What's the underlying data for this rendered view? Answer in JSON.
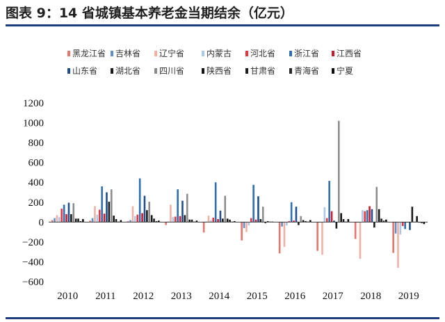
{
  "figure_title": "图表 9：14 省城镇基本养老金当期结余（亿元）",
  "chart_data": {
    "type": "bar",
    "title": "",
    "xlabel": "",
    "ylabel": "",
    "ylim": [
      -600,
      1200
    ],
    "yticks": [
      -600,
      -400,
      -200,
      0,
      200,
      400,
      600,
      800,
      1000,
      1200
    ],
    "grid": false,
    "legend_position": "top",
    "categories": [
      "2010",
      "2011",
      "2012",
      "2013",
      "2014",
      "2015",
      "2016",
      "2017",
      "2018",
      "2019"
    ],
    "series": [
      {
        "name": "黑龙江省",
        "color": "#e8746a",
        "values": [
          20,
          15,
          10,
          -30,
          -105,
          -185,
          -315,
          -290,
          -170,
          -310
        ]
      },
      {
        "name": "吉林省",
        "color": "#5b8fc8",
        "values": [
          40,
          40,
          20,
          5,
          5,
          -60,
          -45,
          -5,
          -5,
          -115
        ]
      },
      {
        "name": "辽宁省",
        "color": "#f0b0a6",
        "values": [
          70,
          160,
          160,
          175,
          65,
          -100,
          -250,
          -330,
          -370,
          -460
        ]
      },
      {
        "name": "内蒙古",
        "color": "#a9c9e6",
        "values": [
          50,
          75,
          60,
          50,
          20,
          -35,
          -35,
          150,
          120,
          -125
        ]
      },
      {
        "name": "河北省",
        "color": "#e8343a",
        "values": [
          135,
          125,
          75,
          55,
          45,
          40,
          10,
          40,
          110,
          -40
        ]
      },
      {
        "name": "浙江省",
        "color": "#2d6fb0",
        "values": [
          175,
          360,
          440,
          330,
          400,
          375,
          200,
          415,
          120,
          -70
        ]
      },
      {
        "name": "江西省",
        "color": "#c81c2a",
        "values": [
          80,
          85,
          90,
          60,
          30,
          25,
          15,
          110,
          160,
          0
        ]
      },
      {
        "name": "山东省",
        "color": "#1f4e8c",
        "values": [
          195,
          300,
          265,
          215,
          115,
          260,
          155,
          15,
          130,
          -80
        ]
      },
      {
        "name": "湖北省",
        "color": "#1a1a1a",
        "values": [
          80,
          205,
          120,
          70,
          35,
          30,
          -30,
          -65,
          -55,
          155
        ]
      },
      {
        "name": "四川省",
        "color": "#8c8c8c",
        "values": [
          190,
          330,
          205,
          285,
          265,
          155,
          60,
          1020,
          355,
          5
        ]
      },
      {
        "name": "陕西省",
        "color": "#141414",
        "values": [
          35,
          65,
          70,
          25,
          35,
          -10,
          20,
          90,
          130,
          60
        ]
      },
      {
        "name": "甘肃省",
        "color": "#1e1e1e",
        "values": [
          35,
          30,
          35,
          25,
          25,
          10,
          10,
          30,
          35,
          0
        ]
      },
      {
        "name": "青海省",
        "color": "#262626",
        "values": [
          10,
          5,
          10,
          5,
          5,
          5,
          5,
          5,
          15,
          -10
        ]
      },
      {
        "name": "宁夏",
        "color": "#0d0d0d",
        "values": [
          30,
          20,
          15,
          15,
          10,
          5,
          20,
          30,
          25,
          -20
        ]
      }
    ]
  }
}
